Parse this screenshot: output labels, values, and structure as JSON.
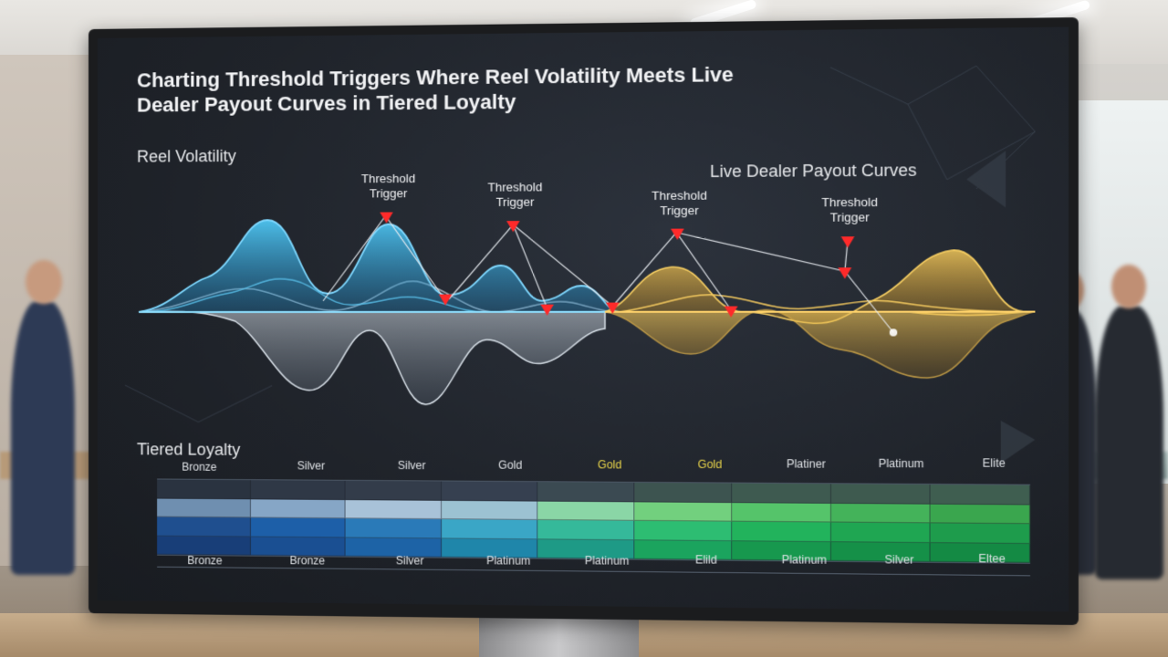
{
  "screen": {
    "title": "Charting Threshold Triggers Where Reel Volatility Meets Live Dealer Payout Curves in Tiered Loyalty",
    "reel_label": "Reel Volatility",
    "live_dealer_label": "Live Dealer Payout Curves",
    "tiered_label": "Tiered Loyalty",
    "triggers": [
      {
        "line1": "Threshold",
        "line2": "Trigger"
      },
      {
        "line1": "Threshold",
        "line2": "Trigger"
      },
      {
        "line1": "Threshold",
        "line2": "Trigger"
      },
      {
        "line1": "Threshold",
        "line2": "Trigger"
      }
    ],
    "tiers_top": [
      "Bronze",
      "Silver",
      "Silver",
      "Gold",
      "Gold",
      "Gold",
      "Platiner",
      "Platinum",
      "Elite"
    ],
    "tiers_bottom": [
      "Bronze",
      "Bronze",
      "Silver",
      "Platinum",
      "Platinum",
      "Elild",
      "Platinum",
      "Silver",
      "Eltee"
    ],
    "colors": {
      "reel_blue": "#3fb8e8",
      "reel_grey": "#b8c2cc",
      "payout_gold": "#e8b84a",
      "trigger_red": "#ff2a2a"
    }
  }
}
